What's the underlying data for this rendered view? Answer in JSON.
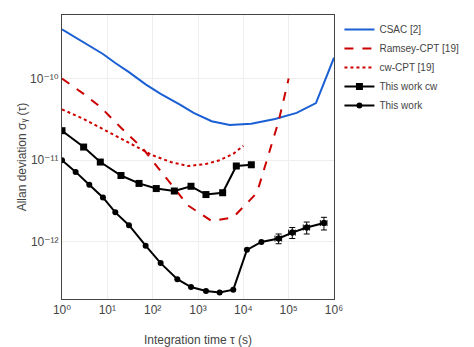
{
  "chart_data": {
    "type": "line",
    "log": true,
    "grid": true,
    "legend": "upper right",
    "xlabel": "Integration time τ (s)",
    "ylabel": "Allan deviation σᵧ (τ)",
    "xlim": [
      1.0,
      1000000.0
    ],
    "ylim": [
      2e-13,
      6e-10
    ],
    "xticks": [
      {
        "value": 1,
        "label": "10⁰"
      },
      {
        "value": 10,
        "label": "10¹"
      },
      {
        "value": 100,
        "label": "10²"
      },
      {
        "value": 1000,
        "label": "10³"
      },
      {
        "value": 10000,
        "label": "10⁴"
      },
      {
        "value": 100000,
        "label": "10⁵"
      },
      {
        "value": 1000000,
        "label": "10⁶"
      }
    ],
    "yticks": [
      {
        "value": 1e-12,
        "label": "10⁻¹²"
      },
      {
        "value": 1e-11,
        "label": "10⁻¹¹"
      },
      {
        "value": 1e-10,
        "label": "10⁻¹⁰"
      }
    ],
    "series": [
      {
        "name": "CSAC [2]",
        "color": "#1a5fd4",
        "line_style": "solid",
        "x": [
          1,
          2,
          4,
          8,
          15,
          30,
          70,
          150,
          400,
          800,
          2000,
          5000,
          15000,
          50000,
          150000,
          400000,
          1000000
        ],
        "values": [
          4e-10,
          3.2e-10,
          2.5e-10,
          2e-10,
          1.55e-10,
          1.2e-10,
          8.5e-11,
          6.5e-11,
          4.8e-11,
          3.8e-11,
          3e-11,
          2.7e-11,
          2.8e-11,
          3.2e-11,
          3.8e-11,
          5e-11,
          1.8e-10
        ]
      },
      {
        "name": "Ramsey-CPT [19]",
        "color": "#cc0000",
        "line_style": "dashed",
        "x": [
          1,
          3,
          7,
          20,
          60,
          200,
          600,
          2000,
          6000,
          20000,
          60000,
          100000
        ],
        "values": [
          1e-10,
          6.5e-11,
          4.5e-11,
          2.5e-11,
          1.4e-11,
          6e-12,
          2.8e-12,
          1.8e-12,
          2e-12,
          4e-12,
          3e-11,
          1e-10
        ]
      },
      {
        "name": "cw-CPT [19]",
        "color": "#cc0000",
        "line_style": "dotted",
        "x": [
          1,
          3,
          7,
          15,
          40,
          100,
          250,
          600,
          1500,
          3000,
          6000,
          10000
        ],
        "values": [
          4.2e-11,
          3.2e-11,
          2.5e-11,
          2e-11,
          1.5e-11,
          1.15e-11,
          9.5e-12,
          8.5e-12,
          9e-12,
          1e-11,
          1.2e-11,
          1.5e-11
        ]
      },
      {
        "name": "This work cw",
        "color": "#000000",
        "line_style": "solid",
        "marker": "square",
        "x": [
          1,
          3,
          7,
          20,
          50,
          120,
          300,
          700,
          1500,
          3500,
          7000,
          15000
        ],
        "values": [
          2.3e-11,
          1.45e-11,
          9.5e-12,
          6.5e-12,
          5.2e-12,
          4.5e-12,
          4.2e-12,
          4.8e-12,
          3.8e-12,
          4e-12,
          8.5e-12,
          8.8e-12
        ]
      },
      {
        "name": "This work",
        "color": "#000000",
        "line_style": "solid",
        "marker": "circle",
        "x": [
          1,
          2,
          4,
          8,
          15,
          30,
          70,
          150,
          350,
          700,
          1500,
          3000,
          6000,
          12000,
          25000,
          60000,
          120000,
          250000,
          600000
        ],
        "values": [
          1e-11,
          7.2e-12,
          5e-12,
          3.5e-12,
          2.3e-12,
          1.6e-12,
          9e-13,
          5.5e-13,
          3.5e-13,
          2.8e-13,
          2.5e-13,
          2.4e-13,
          2.6e-13,
          8e-13,
          1e-12,
          1.1e-12,
          1.3e-12,
          1.5e-12,
          1.7e-12
        ],
        "xerr": [
          null,
          null,
          null,
          null,
          null,
          null,
          null,
          null,
          null,
          null,
          null,
          null,
          null,
          null,
          null,
          10000,
          20000,
          40000,
          100000
        ],
        "yerr": [
          null,
          null,
          null,
          null,
          null,
          null,
          null,
          null,
          null,
          null,
          null,
          null,
          null,
          null,
          null,
          1.5e-13,
          2e-13,
          2.5e-13,
          3e-13
        ]
      }
    ]
  }
}
